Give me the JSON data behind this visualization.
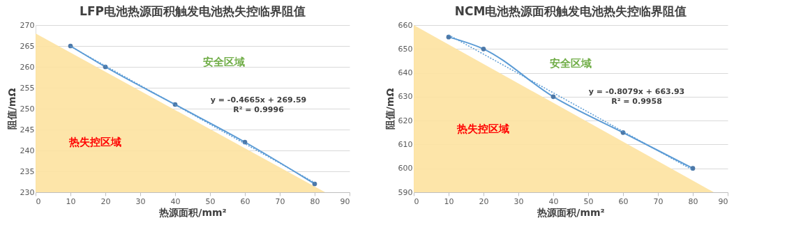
{
  "chart_data": [
    {
      "type": "line",
      "title": "LFP电池热源面积触发电池热失控临界阻值",
      "xlabel": "热源面积/mm²",
      "ylabel": "阻值/mΩ",
      "xlim": [
        0,
        90
      ],
      "xticks": [
        0,
        10,
        20,
        30,
        40,
        50,
        60,
        70,
        80,
        90
      ],
      "ylim": [
        230,
        270
      ],
      "yticks": [
        230,
        235,
        240,
        245,
        250,
        255,
        260,
        265,
        270
      ],
      "grid": "y",
      "series": [
        {
          "type": "area",
          "color": "#fde2a0",
          "x": [
            0,
            83
          ],
          "values": [
            268,
            230
          ]
        },
        {
          "type": "line",
          "color": "#5b9bd5",
          "marker": "circle",
          "line_style": "solid",
          "x": [
            10,
            20,
            40,
            60,
            80
          ],
          "values": [
            265,
            260,
            251,
            242,
            232
          ]
        },
        {
          "type": "line",
          "color": "#5b9bd5",
          "marker": "none",
          "line_style": "dotted",
          "x": [
            10,
            80
          ],
          "values": [
            264.9,
            232.3
          ]
        }
      ],
      "annotations": [
        "安全区域",
        "热失控区域",
        "y = -0.4665x + 269.59",
        "R² = 0.9996"
      ]
    },
    {
      "type": "line",
      "title": "NCM电池热源面积触发电池热失控临界阻值",
      "xlabel": "热源面积/mm²",
      "ylabel": "阻值/mΩ",
      "xlim": [
        0,
        90
      ],
      "xticks": [
        0,
        10,
        20,
        30,
        40,
        50,
        60,
        70,
        80,
        90
      ],
      "ylim": [
        590,
        660
      ],
      "yticks": [
        590,
        600,
        610,
        620,
        630,
        640,
        650,
        660
      ],
      "grid": "y",
      "series": [
        {
          "type": "area",
          "color": "#fde2a0",
          "x": [
            0,
            86
          ],
          "values": [
            660,
            590
          ]
        },
        {
          "type": "line",
          "color": "#5b9bd5",
          "marker": "circle",
          "line_style": "solid",
          "x": [
            10,
            20,
            40,
            60,
            80
          ],
          "values": [
            655,
            650,
            630,
            615,
            600
          ]
        },
        {
          "type": "line",
          "color": "#5b9bd5",
          "marker": "none",
          "line_style": "dotted",
          "x": [
            10,
            80
          ],
          "values": [
            655.9,
            599.3
          ]
        }
      ],
      "annotations": [
        "安全区域",
        "热失控区域",
        "y = -0.8079x + 663.93",
        "R² = 0.9958"
      ]
    }
  ]
}
